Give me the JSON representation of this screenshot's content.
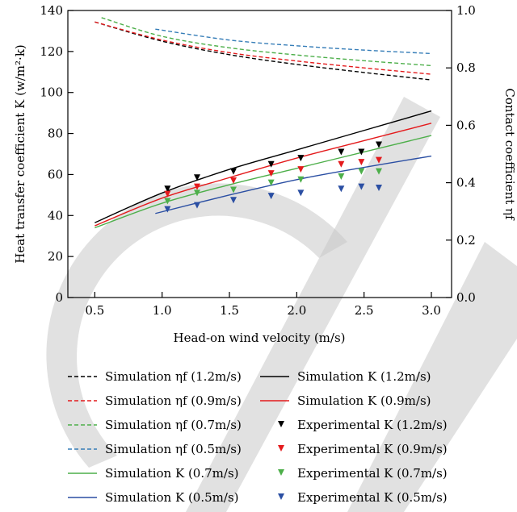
{
  "chart_data": {
    "type": "line",
    "x_axis": {
      "label": "Head-on wind velocity (m/s)",
      "range": [
        0.3,
        3.15
      ],
      "ticks": [
        "0.5",
        "1.0",
        "1.5",
        "2.0",
        "2.5",
        "3.0"
      ],
      "tick_values": [
        0.5,
        1.0,
        1.5,
        2.0,
        2.5,
        3.0
      ]
    },
    "y_axis_left": {
      "label": "Heat transfer coefficient K (w/m²·k)",
      "range": [
        0,
        140
      ],
      "ticks": [
        "0",
        "20",
        "40",
        "60",
        "80",
        "100",
        "120",
        "140"
      ],
      "tick_values": [
        0,
        20,
        40,
        60,
        80,
        100,
        120,
        140
      ]
    },
    "y_axis_right": {
      "label": "Contact coefficient ηf",
      "range": [
        0,
        1.0
      ],
      "ticks": [
        "0.0",
        "0.2",
        "0.4",
        "0.6",
        "0.8",
        "1.0"
      ],
      "tick_values": [
        0.0,
        0.2,
        0.4,
        0.6,
        0.8,
        1.0
      ]
    },
    "grid": false,
    "legend_position": "bottom",
    "series": [
      {
        "name": "Simulation ηf (1.2m/s)",
        "axis": "right",
        "style": "dashed",
        "color": "#000000",
        "x": [
          0.5,
          1.0,
          1.5,
          2.0,
          2.5,
          3.0
        ],
        "y": [
          0.96,
          0.893,
          0.846,
          0.812,
          0.784,
          0.758
        ]
      },
      {
        "name": "Simulation ηf (0.9m/s)",
        "axis": "right",
        "style": "dashed",
        "color": "#e41a1c",
        "x": [
          0.5,
          1.0,
          1.5,
          2.0,
          2.5,
          3.0
        ],
        "y": [
          0.96,
          0.897,
          0.853,
          0.824,
          0.8,
          0.778
        ]
      },
      {
        "name": "Simulation ηf (0.7m/s)",
        "axis": "right",
        "style": "dashed",
        "color": "#4daf4a",
        "x": [
          0.55,
          1.0,
          1.5,
          2.0,
          2.5,
          3.0
        ],
        "y": [
          0.975,
          0.91,
          0.87,
          0.845,
          0.825,
          0.808
        ]
      },
      {
        "name": "Simulation ηf (0.5m/s)",
        "axis": "right",
        "style": "dashed",
        "color": "#377eb8",
        "x": [
          0.95,
          1.5,
          2.0,
          2.5,
          3.0
        ],
        "y": [
          0.935,
          0.897,
          0.877,
          0.862,
          0.85
        ]
      },
      {
        "name": "Simulation K (1.2m/s)",
        "axis": "left",
        "style": "solid",
        "color": "#000000",
        "x": [
          0.5,
          1.0,
          1.5,
          2.0,
          2.5,
          3.0
        ],
        "y": [
          36.5,
          51.0,
          62.5,
          72.0,
          81.5,
          91.0
        ]
      },
      {
        "name": "Simulation K (0.9m/s)",
        "axis": "left",
        "style": "solid",
        "color": "#e41a1c",
        "x": [
          0.5,
          1.0,
          1.5,
          2.0,
          2.5,
          3.0
        ],
        "y": [
          35.0,
          48.5,
          58.5,
          68.0,
          76.5,
          85.0
        ]
      },
      {
        "name": "Simulation K (0.7m/s)",
        "axis": "left",
        "style": "solid",
        "color": "#4daf4a",
        "x": [
          0.5,
          1.0,
          1.5,
          2.0,
          2.5,
          3.0
        ],
        "y": [
          34.0,
          46.0,
          55.0,
          63.0,
          71.0,
          79.0
        ]
      },
      {
        "name": "Simulation K (0.5m/s)",
        "axis": "left",
        "style": "solid",
        "color": "#2b4fa3",
        "x": [
          0.95,
          1.5,
          2.0,
          2.5,
          3.0
        ],
        "y": [
          41.0,
          50.0,
          57.5,
          63.5,
          69.0
        ]
      },
      {
        "name": "Experimental K (1.2m/s)",
        "axis": "left",
        "style": "marker",
        "color": "#000000",
        "x": [
          1.04,
          1.26,
          1.53,
          1.81,
          2.03,
          2.33,
          2.48,
          2.61
        ],
        "y": [
          53.0,
          58.5,
          61.5,
          65.0,
          68.0,
          71.0,
          71.0,
          74.5
        ]
      },
      {
        "name": "Experimental K (0.9m/s)",
        "axis": "left",
        "style": "marker",
        "color": "#e41a1c",
        "x": [
          1.04,
          1.26,
          1.53,
          1.81,
          2.03,
          2.33,
          2.48,
          2.61
        ],
        "y": [
          50.5,
          54.0,
          57.0,
          60.5,
          62.5,
          65.0,
          66.0,
          67.0
        ]
      },
      {
        "name": "Experimental K (0.7m/s)",
        "axis": "left",
        "style": "marker",
        "color": "#4daf4a",
        "x": [
          1.04,
          1.26,
          1.53,
          1.81,
          2.03,
          2.33,
          2.48,
          2.61
        ],
        "y": [
          47.0,
          51.0,
          52.5,
          56.0,
          57.5,
          59.0,
          61.5,
          61.5
        ]
      },
      {
        "name": "Experimental K (0.5m/s)",
        "axis": "left",
        "style": "marker",
        "color": "#2b4fa3",
        "x": [
          1.04,
          1.26,
          1.53,
          1.81,
          2.03,
          2.33,
          2.48,
          2.61
        ],
        "y": [
          43.0,
          45.0,
          47.5,
          49.5,
          51.0,
          53.0,
          54.0,
          53.5
        ]
      }
    ]
  }
}
